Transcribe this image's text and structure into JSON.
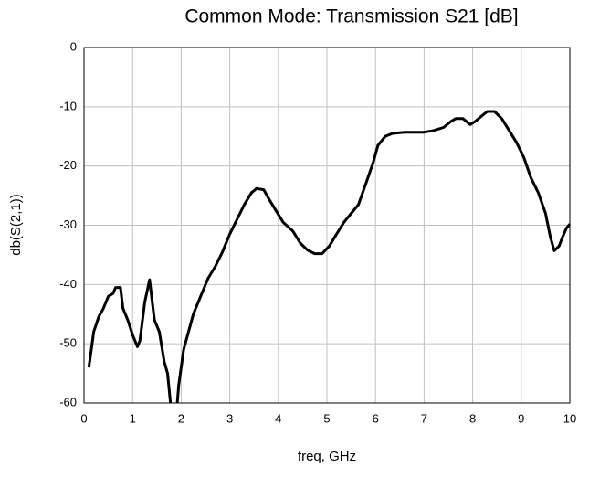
{
  "chart_data": {
    "type": "line",
    "title": "Common Mode: Transmission S21 [dB]",
    "xlabel": "freq, GHz",
    "ylabel": "db(S(2,1))",
    "x": [
      0.1,
      0.15,
      0.2,
      0.3,
      0.4,
      0.5,
      0.6,
      0.65,
      0.75,
      0.8,
      0.9,
      1.0,
      1.1,
      1.15,
      1.25,
      1.35,
      1.45,
      1.55,
      1.65,
      1.72,
      1.78,
      1.85,
      1.92,
      1.95,
      2.05,
      2.15,
      2.25,
      2.4,
      2.55,
      2.7,
      2.85,
      3.0,
      3.15,
      3.3,
      3.45,
      3.55,
      3.7,
      3.8,
      3.95,
      4.1,
      4.3,
      4.45,
      4.6,
      4.75,
      4.9,
      5.05,
      5.2,
      5.35,
      5.5,
      5.65,
      5.8,
      5.95,
      6.05,
      6.2,
      6.35,
      6.6,
      7.0,
      7.2,
      7.4,
      7.55,
      7.65,
      7.8,
      7.95,
      8.05,
      8.15,
      8.3,
      8.45,
      8.6,
      8.75,
      8.9,
      9.05,
      9.2,
      9.35,
      9.5,
      9.6,
      9.68,
      9.78,
      9.85,
      9.93,
      10.0
    ],
    "series": [
      {
        "name": "db(S(2,1))",
        "color": "#000000",
        "values": [
          -54,
          -51,
          -48,
          -45.5,
          -44,
          -42,
          -41.5,
          -40.5,
          -40.5,
          -44,
          -46,
          -48.5,
          -50.5,
          -49.5,
          -43,
          -39.2,
          -46,
          -48,
          -53,
          -55,
          -60,
          null,
          -60,
          -57,
          -51,
          -48,
          -45,
          -42,
          -39,
          -37,
          -34.5,
          -31.5,
          -29,
          -26.5,
          -24.5,
          -23.8,
          -24,
          -25.5,
          -27.5,
          -29.5,
          -31,
          -33,
          -34.2,
          -34.8,
          -34.8,
          -33.5,
          -31.5,
          -29.5,
          -28,
          -26.5,
          -23,
          -19.5,
          -16.5,
          -15,
          -14.5,
          -14.3,
          -14.3,
          -14,
          -13.5,
          -12.5,
          -12,
          -12,
          -13,
          -12.5,
          -11.8,
          -10.8,
          -10.8,
          -12,
          -14,
          -16,
          -18.5,
          -22,
          -24.5,
          -28,
          -32,
          -34.3,
          -33.5,
          -32,
          -30.5,
          -29.8
        ]
      }
    ],
    "xlim": [
      0,
      10
    ],
    "xticks": [
      0,
      1,
      2,
      3,
      4,
      5,
      6,
      7,
      8,
      9,
      10
    ],
    "ylim": [
      -60,
      0
    ],
    "yticks": [
      0,
      -10,
      -20,
      -30,
      -40,
      -50,
      -60
    ],
    "grid": true
  }
}
